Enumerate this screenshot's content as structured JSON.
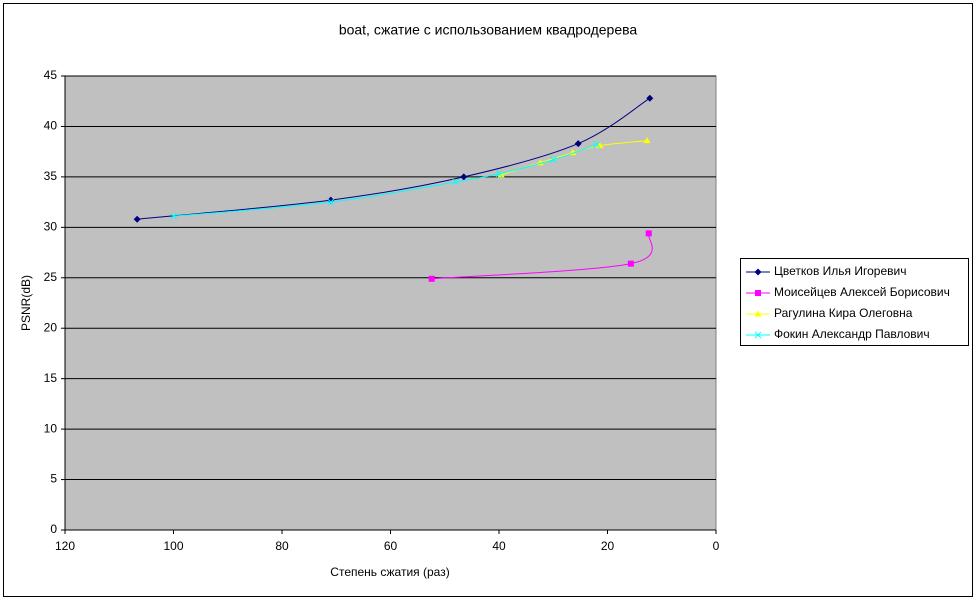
{
  "chart_data": {
    "type": "line",
    "title": "boat, сжатие с использованием квадродерева",
    "x_label": "Степень сжатия (раз)",
    "y_label": "PSNR(dB)",
    "xlim": [
      120,
      0
    ],
    "xticks": [
      120,
      100,
      80,
      60,
      40,
      20,
      0
    ],
    "ylim": [
      0,
      45
    ],
    "yticks": [
      0,
      5,
      10,
      15,
      20,
      25,
      30,
      35,
      40,
      45
    ],
    "grid": true,
    "legend": "right",
    "smooth": true,
    "series": [
      {
        "name": "Цветков Илья Игоревич",
        "color": "#000080",
        "marker": "diamond",
        "x": [
          106.7,
          71.0,
          46.5,
          25.4,
          12.2
        ],
        "values": [
          30.8,
          32.7,
          35.0,
          38.3,
          42.8
        ]
      },
      {
        "name": "Моисейцев Алексей Борисович",
        "color": "#FF00FF",
        "marker": "square",
        "x": [
          52.4,
          15.7,
          12.4
        ],
        "values": [
          24.9,
          26.4,
          29.4
        ]
      },
      {
        "name": "Рагулина Кира Олеговна",
        "color": "#FFFF00",
        "marker": "triangle",
        "x": [
          39.6,
          32.4,
          26.4,
          21.4,
          12.7
        ],
        "values": [
          35.2,
          36.4,
          37.4,
          38.1,
          38.6
        ]
      },
      {
        "name": "Фокин Александр Павлович",
        "color": "#00FFFF",
        "marker": "x",
        "x": [
          100.0,
          71.0,
          48.0,
          40.0,
          30.0,
          22.0
        ],
        "values": [
          31.1,
          32.5,
          34.5,
          35.3,
          36.7,
          38.2
        ]
      }
    ]
  }
}
